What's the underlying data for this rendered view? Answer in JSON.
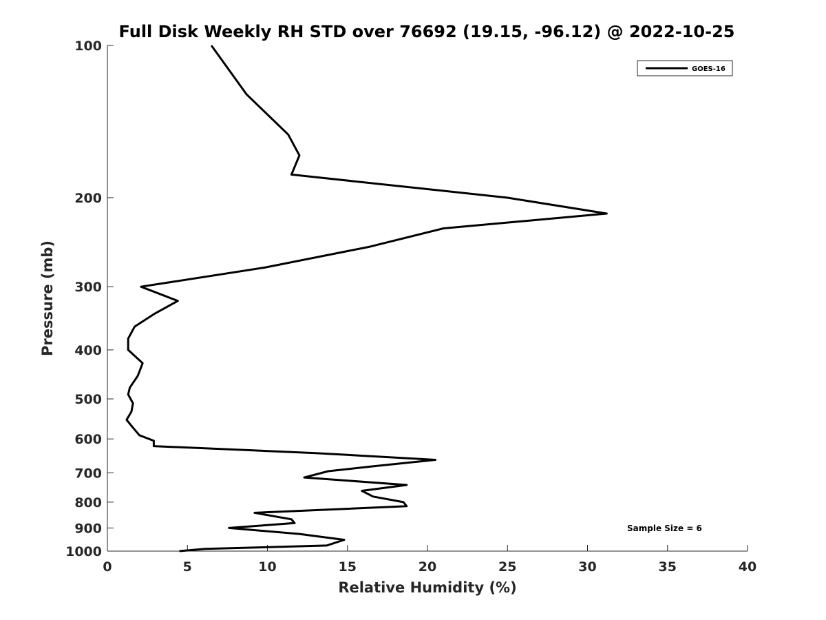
{
  "chart_data": {
    "type": "line",
    "title": "Full Disk Weekly RH STD over 76692 (19.15, -96.12) @ 2022-10-25",
    "xlabel": "Relative Humidity (%)",
    "ylabel": "Pressure (mb)",
    "xlim": [
      0,
      40
    ],
    "ylim": [
      100,
      1000
    ],
    "y_scale": "log",
    "y_reversed": true,
    "x_ticks": [
      0,
      5,
      10,
      15,
      20,
      25,
      30,
      35,
      40
    ],
    "y_ticks": [
      100,
      200,
      300,
      400,
      500,
      600,
      700,
      800,
      900,
      1000
    ],
    "grid": false,
    "legend_position": "top-right",
    "series": [
      {
        "name": "GOES-16",
        "color": "#000000",
        "points": [
          [
            6.5,
            100
          ],
          [
            8.7,
            125
          ],
          [
            11.3,
            150
          ],
          [
            12.0,
            165
          ],
          [
            11.5,
            180
          ],
          [
            25.0,
            200
          ],
          [
            31.2,
            215
          ],
          [
            21.0,
            230
          ],
          [
            16.4,
            250
          ],
          [
            9.8,
            275
          ],
          [
            2.1,
            300
          ],
          [
            4.4,
            320
          ],
          [
            2.9,
            340
          ],
          [
            1.7,
            360
          ],
          [
            1.3,
            380
          ],
          [
            1.3,
            400
          ],
          [
            2.2,
            425
          ],
          [
            1.9,
            450
          ],
          [
            1.4,
            475
          ],
          [
            1.3,
            490
          ],
          [
            1.6,
            510
          ],
          [
            1.5,
            530
          ],
          [
            1.2,
            550
          ],
          [
            1.6,
            570
          ],
          [
            2.0,
            590
          ],
          [
            2.9,
            605
          ],
          [
            2.9,
            620
          ],
          [
            13.0,
            640
          ],
          [
            20.5,
            660
          ],
          [
            16.5,
            680
          ],
          [
            13.8,
            695
          ],
          [
            12.3,
            715
          ],
          [
            18.7,
            740
          ],
          [
            15.9,
            760
          ],
          [
            16.6,
            780
          ],
          [
            18.5,
            800
          ],
          [
            18.7,
            815
          ],
          [
            9.2,
            840
          ],
          [
            11.5,
            865
          ],
          [
            11.7,
            880
          ],
          [
            7.6,
            900
          ],
          [
            12.0,
            925
          ],
          [
            14.8,
            950
          ],
          [
            13.7,
            975
          ],
          [
            6.1,
            990
          ],
          [
            4.5,
            1000
          ]
        ]
      }
    ],
    "annotation": "Sample Size = 6"
  }
}
